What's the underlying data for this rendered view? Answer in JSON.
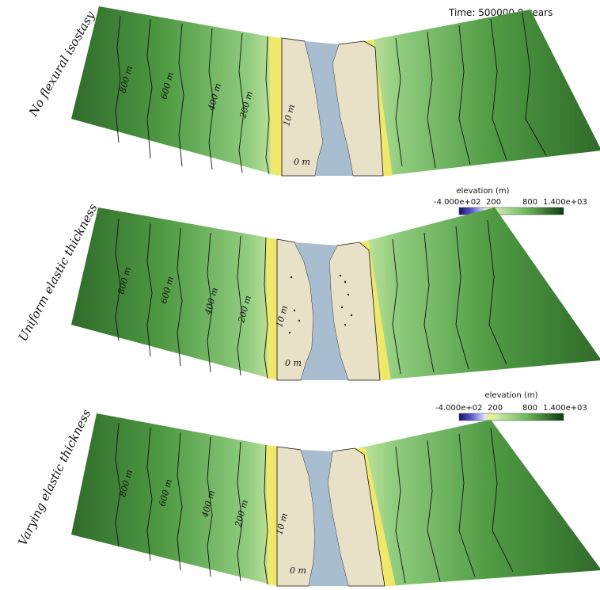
{
  "time_label": "Time: 500000.0 years",
  "panels": [
    {
      "side_label": "No flexural isostasy",
      "contours": [
        "800 m",
        "600 m",
        "400 m",
        "200 m",
        "10 m",
        "0 m"
      ]
    },
    {
      "side_label": "Uniform elastic thickness",
      "contours": [
        "800 m",
        "600 m",
        "400 m",
        "200 m",
        "10 m",
        "0 m"
      ]
    },
    {
      "side_label": "Varying elastic thickness",
      "contours": [
        "800 m",
        "600 m",
        "400 m",
        "200 m",
        "10 m",
        "0 m"
      ]
    }
  ],
  "colorbars": [
    {
      "title": "elevation (m)",
      "ticks": [
        "-4.000e+02",
        "200",
        "800",
        "1.400e+03"
      ]
    },
    {
      "title": "elevation (m)",
      "ticks": [
        "-4.000e+02",
        "200",
        "800",
        "1.400e+03"
      ]
    }
  ],
  "colors": {
    "land_dark": "#2f6b2a",
    "land_mid": "#4f9a43",
    "land_light": "#9fd28a",
    "beach": "#f0e86a",
    "sand": "#e9e1c7",
    "water": "#a9bdd0",
    "contour": "#111111"
  }
}
